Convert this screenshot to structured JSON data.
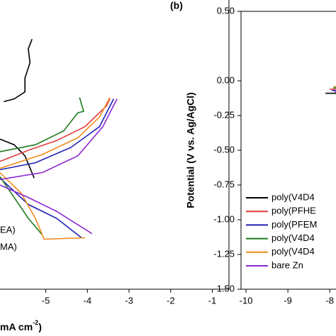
{
  "chart_data": [
    {
      "type": "line",
      "x_label": "mA cm",
      "x_label_sup": "-2",
      "x_label_end": ")",
      "legend_fragments": [
        "EA)",
        "MA)"
      ],
      "xlim": [
        -6.1,
        -0.6
      ],
      "xticks": [
        -5,
        -4,
        -3,
        -2,
        -1
      ],
      "ylim": [
        -1.5,
        0.5
      ],
      "series": [
        {
          "color": "#000000",
          "x": [
            -5.33,
            -5.42,
            -5.38,
            -5.5,
            -5.5,
            -5.76,
            -6.01,
            null,
            -6.1,
            -5.76,
            -5.5,
            -5.28
          ],
          "values": [
            0.3,
            0.23,
            0.13,
            0.02,
            -0.08,
            -0.13,
            -0.15,
            null,
            -0.42,
            -0.46,
            -0.54,
            -0.7
          ]
        },
        {
          "color": "#e03c3c",
          "x": [
            -6.1,
            -5.42,
            -4.74,
            -4.06,
            -3.54,
            -3.46
          ],
          "values": [
            -0.58,
            -0.5,
            -0.43,
            -0.33,
            -0.18,
            -0.13
          ]
        },
        {
          "color": "#1f1fb4",
          "x": [
            -6.1,
            -5.25,
            -4.4,
            -3.71,
            -3.37,
            null,
            -6.1,
            -5.42,
            -4.74,
            -4.14
          ],
          "values": [
            -0.64,
            -0.59,
            -0.48,
            -0.33,
            -0.13,
            null,
            -0.7,
            -0.89,
            -0.99,
            -1.13
          ]
        },
        {
          "color": "#1e7a1e",
          "x": [
            -6.1,
            -5.25,
            -4.57,
            -4.23,
            -4.09,
            -4.19,
            null,
            -6.1,
            -5.76,
            -5.42,
            -5.08
          ],
          "values": [
            -0.51,
            -0.46,
            -0.36,
            -0.23,
            -0.22,
            -0.12,
            null,
            -0.69,
            -0.84,
            -0.99,
            -1.11
          ]
        },
        {
          "color": "#f08c1e",
          "x": [
            -6.1,
            -5.08,
            -4.23,
            -3.71,
            -3.46,
            null,
            -6.1,
            -5.59,
            -5.25,
            -5.04,
            -4.06
          ],
          "values": [
            -0.63,
            -0.53,
            -0.41,
            -0.26,
            -0.12,
            null,
            -0.66,
            -0.81,
            -0.99,
            -1.14,
            -1.13
          ]
        },
        {
          "color": "#8c28d2",
          "x": [
            -6.1,
            -5.08,
            -4.23,
            -3.63,
            -3.29,
            null,
            -6.1,
            -5.42,
            -4.74,
            -3.89
          ],
          "values": [
            -0.71,
            -0.66,
            -0.54,
            -0.33,
            -0.13,
            null,
            -0.75,
            -0.84,
            -0.94,
            -1.1
          ]
        }
      ]
    },
    {
      "type": "line",
      "panel_label": "(b)",
      "y_label": "Potential (V vs. Ag/AgCl)",
      "xlim": [
        -10.12,
        -7.85
      ],
      "xticks": [
        -10,
        -9,
        -8
      ],
      "ylim": [
        -1.5,
        0.5
      ],
      "yticks": [
        {
          "value": 0.5,
          "label": "0.50"
        },
        {
          "value": 0,
          "label": "0.00"
        },
        -0.25,
        {
          "value": -0.5,
          "label": "-0.50"
        },
        -0.75,
        {
          "value": -1,
          "label": "-1.00"
        },
        -1.25,
        {
          "value": -1.5,
          "label": "-1.50"
        }
      ],
      "series": [
        {
          "name": "poly(V4D4",
          "color": "#000000",
          "x": [
            -8.1,
            -7.85
          ],
          "values": [
            -0.09,
            -0.09
          ]
        },
        {
          "name": "poly(PFHE",
          "color": "#e03c3c",
          "x": [
            -8.0,
            -7.85
          ],
          "values": [
            -0.06,
            -0.06
          ]
        },
        {
          "name": "poly(PFEM",
          "color": "#1f1fb4",
          "x": [
            -7.95,
            -7.85
          ],
          "values": [
            -0.07,
            -0.07
          ]
        },
        {
          "name": "poly(V4D4",
          "color": "#1e7a1e",
          "x": [
            -7.92,
            -7.85
          ],
          "values": [
            -0.05,
            -0.05
          ]
        },
        {
          "name": "poly(V4D4",
          "color": "#f08c1e",
          "x": [
            -7.9,
            -7.85
          ],
          "values": [
            -0.04,
            -0.04
          ]
        },
        {
          "name": "bare Zn",
          "color": "#8c28d2",
          "x": [
            -7.88,
            -7.85
          ],
          "values": [
            -0.08,
            -0.08
          ]
        }
      ]
    }
  ]
}
